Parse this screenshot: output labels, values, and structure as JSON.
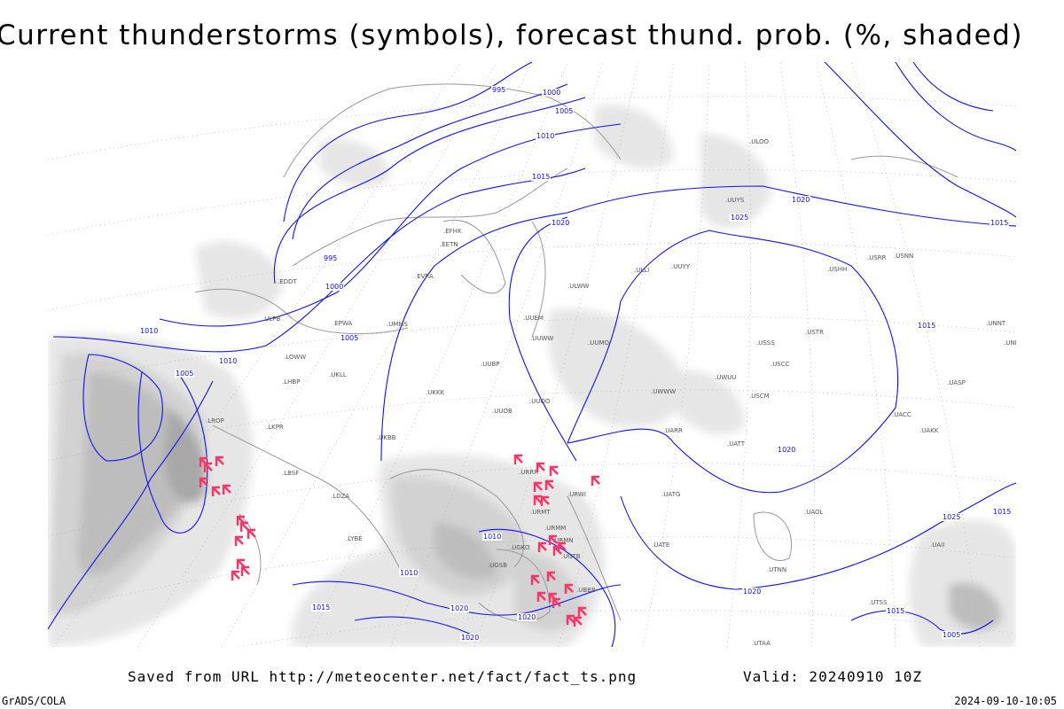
{
  "title": "Current thunderstorms (symbols), forecast thund. prob. (%, shaded)",
  "footer": {
    "saved_from": "Saved from URL http://meteocenter.net/fact/fact_ts.png",
    "valid": "Valid: 20240910 10Z",
    "software": "GrADS/COLA",
    "timestamp": "2024-09-10-10:05"
  },
  "colors": {
    "isobar": "#1010ff",
    "thunderstorm_symbol": "#ff3366",
    "coastline": "#999999",
    "shading": [
      "#e6e6e6",
      "#d2d2d2",
      "#bdbdbd",
      "#a8a8a8"
    ]
  },
  "isobar_labels": [
    "995",
    "1000",
    "1005",
    "1010",
    "1015",
    "1020",
    "1025",
    "1020",
    "1015",
    "1010",
    "1005",
    "1000",
    "995",
    "1005",
    "1010",
    "1015",
    "1020",
    "1025",
    "1015",
    "1010",
    "1010",
    "1005",
    "1015",
    "1020",
    "1020",
    "1020",
    "1015",
    "1020"
  ],
  "stations": [
    "ULOO",
    "UUYS",
    "UUYY",
    "ULLI",
    "ULWW",
    "UUEM",
    "UUWW",
    "UUMO",
    "UUBP",
    "UUOO",
    "UUOB",
    "UKKK",
    "URRR",
    "URWI",
    "URMT",
    "URMM",
    "URMN",
    "UGSB",
    "UGKO",
    "UGTB",
    "UBBB",
    "UATT",
    "UARR",
    "UWWW",
    "UWUU",
    "USCM",
    "USSS",
    "USCC",
    "USTR",
    "USHH",
    "USNN",
    "USRR",
    "UACC",
    "UAKK",
    "UASP",
    "UATG",
    "UATE",
    "UAOL",
    "UAII",
    "EPWA",
    "UMMS",
    "UKLL",
    "UKBB",
    "LHBP",
    "LROP",
    "LBSF",
    "LDZA",
    "LYBE",
    "LOWW",
    "LKPR",
    "EDDT",
    "EVRA",
    "EETN",
    "EFHK",
    "ULPB",
    "UNNT",
    "UNBB",
    "UTAA",
    "UTSS",
    "UTNN"
  ]
}
